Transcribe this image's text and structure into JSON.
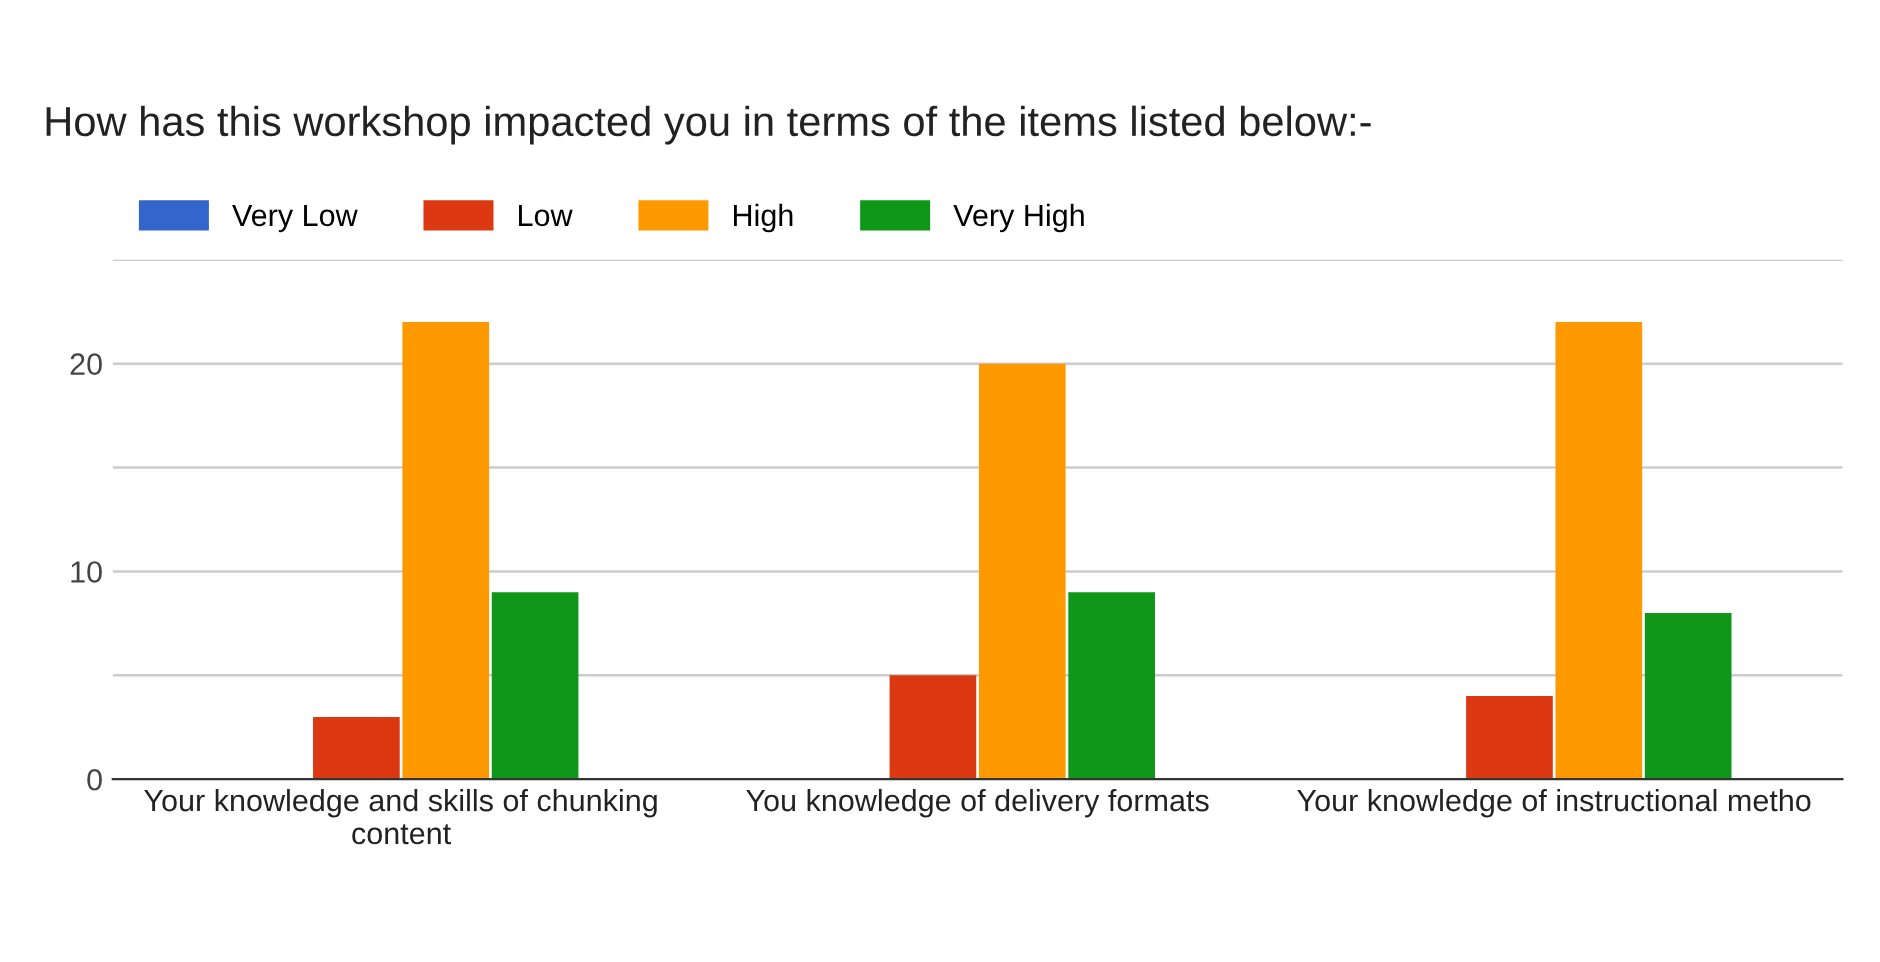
{
  "chart_data": {
    "type": "bar",
    "title": "How has this workshop impacted you in terms of the items listed below:-",
    "categories": [
      "Your knowledge and skills of chunking\ncontent",
      "You knowledge of delivery formats",
      "Your knowledge of instructional metho"
    ],
    "series": [
      {
        "name": "Very Low",
        "color": "#3366cc",
        "values": [
          0,
          0,
          0
        ]
      },
      {
        "name": "Low",
        "color": "#dc3912",
        "values": [
          3,
          5,
          4
        ]
      },
      {
        "name": "High",
        "color": "#ff9900",
        "values": [
          22,
          20,
          22
        ]
      },
      {
        "name": "Very High",
        "color": "#109618",
        "values": [
          9,
          9,
          8
        ]
      }
    ],
    "ylim": [
      0,
      25
    ],
    "yticks": [
      0,
      {
        "value": 5,
        "label": null
      },
      10,
      {
        "value": 15,
        "label": null
      },
      20,
      {
        "value": 25,
        "label": null
      }
    ],
    "grid": "y",
    "legend": "top left"
  }
}
